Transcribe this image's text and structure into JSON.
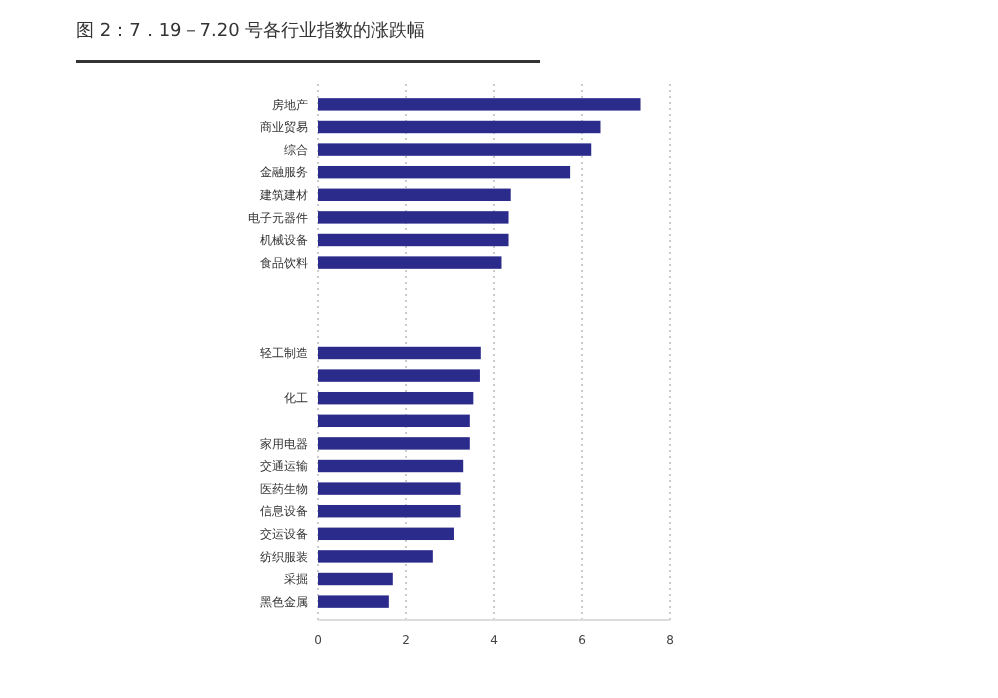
{
  "chart_data": {
    "type": "bar",
    "orientation": "horizontal",
    "title": "图 2：7．19－7.20 号各行业指数的涨跌幅",
    "categories": [
      "房地产",
      "商业贸易",
      "综合",
      "金融服务",
      "建筑建材",
      "电子元器件",
      "机械设备",
      "食品饮料",
      null,
      null,
      null,
      "轻工制造",
      null,
      "化工",
      null,
      "家用电器",
      "交通运输",
      "医药生物",
      "信息设备",
      "交运设备",
      "纺织服装",
      "采掘",
      "黑色金属"
    ],
    "values": [
      7.33,
      6.42,
      6.21,
      5.73,
      4.38,
      4.33,
      4.33,
      4.17,
      null,
      null,
      null,
      3.7,
      3.68,
      3.53,
      3.45,
      3.45,
      3.3,
      3.24,
      3.24,
      3.09,
      2.61,
      1.7,
      1.61
    ],
    "color": "#2b2b8c",
    "xlim": [
      0,
      8
    ],
    "xticks": [
      0,
      2,
      4,
      6,
      8
    ],
    "grid": "x"
  }
}
